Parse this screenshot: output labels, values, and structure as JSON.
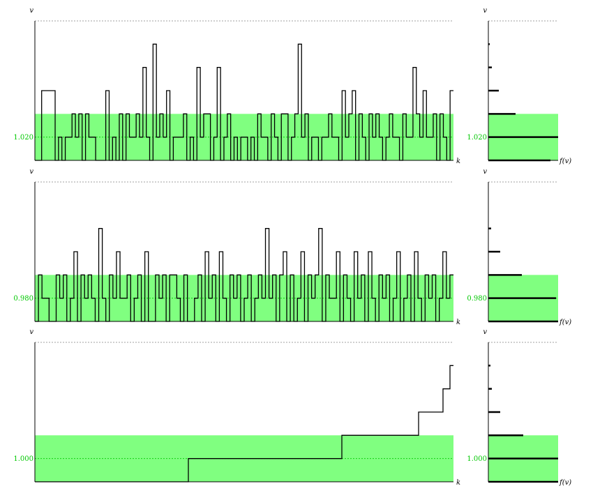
{
  "chart_data": [
    {
      "type": "line",
      "ylabel": "v",
      "xlabel": "k",
      "band": [
        1.01,
        1.03
      ],
      "ylim": [
        1.01,
        1.07
      ],
      "yticks": [
        {
          "value": 1.02,
          "label": "1.020"
        }
      ],
      "series": [
        {
          "y": [
            1.01,
            1.01,
            1.04,
            1.04,
            1.04,
            1.04,
            1.01,
            1.02,
            1.01,
            1.02,
            1.02,
            1.03,
            1.02,
            1.03,
            1.01,
            1.03,
            1.02,
            1.02,
            1.01,
            1.01,
            1.01,
            1.04,
            1.01,
            1.02,
            1.01,
            1.03,
            1.01,
            1.03,
            1.02,
            1.02,
            1.03,
            1.02,
            1.05,
            1.02,
            1.01,
            1.06,
            1.02,
            1.03,
            1.02,
            1.04,
            1.01,
            1.02,
            1.02,
            1.02,
            1.03,
            1.01,
            1.02,
            1.01,
            1.05,
            1.02,
            1.03,
            1.03,
            1.01,
            1.02,
            1.05,
            1.01,
            1.02,
            1.03,
            1.01,
            1.02,
            1.01,
            1.02,
            1.02,
            1.01,
            1.02,
            1.01,
            1.03,
            1.02,
            1.02,
            1.01,
            1.03,
            1.02,
            1.01,
            1.03,
            1.03,
            1.01,
            1.02,
            1.03,
            1.06,
            1.02,
            1.03,
            1.01,
            1.02,
            1.02,
            1.01,
            1.02,
            1.02,
            1.03,
            1.02,
            1.02,
            1.01,
            1.04,
            1.02,
            1.03,
            1.04,
            1.01,
            1.03,
            1.02,
            1.01,
            1.03,
            1.02,
            1.03,
            1.02,
            1.01,
            1.02,
            1.03,
            1.02,
            1.02,
            1.01,
            1.03,
            1.02,
            1.02,
            1.05,
            1.03,
            1.02,
            1.04,
            1.02,
            1.02,
            1.03,
            1.01,
            1.03,
            1.02,
            1.01,
            1.04
          ]
        }
      ]
    },
    {
      "type": "line",
      "ylabel": "v",
      "xlabel": "k",
      "band": [
        0.97,
        0.99
      ],
      "ylim": [
        0.97,
        1.03
      ],
      "yticks": [
        {
          "value": 0.98,
          "label": "0.980"
        }
      ],
      "series": [
        {
          "y": [
            0.97,
            0.99,
            0.98,
            0.98,
            0.97,
            0.97,
            0.99,
            0.98,
            0.99,
            0.97,
            0.98,
            1.0,
            0.97,
            0.99,
            0.98,
            0.99,
            0.98,
            0.97,
            1.01,
            0.98,
            0.97,
            0.99,
            0.98,
            1.0,
            0.98,
            0.98,
            0.99,
            0.97,
            0.98,
            0.99,
            0.97,
            1.0,
            0.97,
            0.97,
            0.99,
            0.98,
            0.99,
            0.97,
            0.99,
            0.99,
            0.98,
            0.97,
            0.99,
            0.97,
            0.97,
            0.98,
            0.99,
            0.97,
            1.0,
            0.98,
            0.99,
            0.97,
            1.0,
            0.98,
            0.97,
            0.99,
            0.98,
            0.99,
            0.97,
            0.98,
            0.99,
            0.97,
            0.98,
            0.99,
            0.98,
            1.01,
            0.98,
            0.99,
            0.97,
            0.99,
            1.0,
            0.97,
            0.99,
            0.97,
            0.98,
            1.0,
            0.97,
            0.99,
            0.98,
            0.99,
            1.01,
            0.97,
            0.99,
            0.98,
            0.98,
            1.0,
            0.97,
            0.99,
            0.98,
            0.97,
            1.0,
            0.98,
            0.99,
            0.97,
            1.0,
            0.98,
            0.97,
            0.99,
            0.98,
            0.99,
            0.97,
            0.98,
            1.0,
            0.97,
            0.98,
            0.99,
            0.97,
            1.0,
            0.98,
            0.97,
            0.99,
            0.98,
            0.99,
            0.97,
            0.98,
            1.0,
            0.98,
            0.99
          ]
        }
      ]
    },
    {
      "type": "line",
      "ylabel": "v",
      "xlabel": "k",
      "band": [
        0.99,
        1.01
      ],
      "ylim": [
        0.99,
        1.05
      ],
      "yticks": [
        {
          "value": 1.0,
          "label": "1.000"
        }
      ],
      "series": [
        {
          "y": [
            0.99,
            0.99,
            0.99,
            0.99,
            0.99,
            0.99,
            0.99,
            0.99,
            0.99,
            0.99,
            0.99,
            0.99,
            0.99,
            0.99,
            0.99,
            0.99,
            0.99,
            0.99,
            0.99,
            0.99,
            0.99,
            0.99,
            0.99,
            0.99,
            0.99,
            0.99,
            0.99,
            0.99,
            0.99,
            0.99,
            0.99,
            0.99,
            0.99,
            0.99,
            0.99,
            0.99,
            0.99,
            0.99,
            0.99,
            0.99,
            0.99,
            0.99,
            0.99,
            0.99,
            1.0,
            1.0,
            1.0,
            1.0,
            1.0,
            1.0,
            1.0,
            1.0,
            1.0,
            1.0,
            1.0,
            1.0,
            1.0,
            1.0,
            1.0,
            1.0,
            1.0,
            1.0,
            1.0,
            1.0,
            1.0,
            1.0,
            1.0,
            1.0,
            1.0,
            1.0,
            1.0,
            1.0,
            1.0,
            1.0,
            1.0,
            1.0,
            1.0,
            1.0,
            1.0,
            1.0,
            1.0,
            1.0,
            1.0,
            1.0,
            1.0,
            1.0,
            1.0,
            1.0,
            1.01,
            1.01,
            1.01,
            1.01,
            1.01,
            1.01,
            1.01,
            1.01,
            1.01,
            1.01,
            1.01,
            1.01,
            1.01,
            1.01,
            1.01,
            1.01,
            1.01,
            1.01,
            1.01,
            1.01,
            1.01,
            1.01,
            1.02,
            1.02,
            1.02,
            1.02,
            1.02,
            1.02,
            1.02,
            1.03,
            1.03,
            1.04
          ]
        }
      ]
    }
  ],
  "histograms": [
    {
      "ylabel": "v",
      "xlabel": "f(v)",
      "yticks": [
        {
          "value": 1.02,
          "label": "1.020"
        }
      ],
      "bins": [
        {
          "v": 1.01,
          "f": 0.89
        },
        {
          "v": 1.02,
          "f": 1.0
        },
        {
          "v": 1.03,
          "f": 0.39
        },
        {
          "v": 1.04,
          "f": 0.15
        },
        {
          "v": 1.05,
          "f": 0.05
        },
        {
          "v": 1.06,
          "f": 0.02
        }
      ]
    },
    {
      "ylabel": "v",
      "xlabel": "f(v)",
      "yticks": [
        {
          "value": 0.98,
          "label": "0.980"
        }
      ],
      "bins": [
        {
          "v": 0.97,
          "f": 1.0
        },
        {
          "v": 0.98,
          "f": 0.97
        },
        {
          "v": 0.99,
          "f": 0.48
        },
        {
          "v": 1.0,
          "f": 0.17
        },
        {
          "v": 1.01,
          "f": 0.04
        }
      ]
    },
    {
      "ylabel": "v",
      "xlabel": "f(v)",
      "yticks": [
        {
          "value": 1.0,
          "label": "1.000"
        }
      ],
      "bins": [
        {
          "v": 0.99,
          "f": 1.0
        },
        {
          "v": 1.0,
          "f": 1.0
        },
        {
          "v": 1.01,
          "f": 0.5
        },
        {
          "v": 1.02,
          "f": 0.17
        },
        {
          "v": 1.03,
          "f": 0.05
        },
        {
          "v": 1.04,
          "f": 0.03
        }
      ]
    }
  ],
  "colors": {
    "band": "#80ff80",
    "tick": "#00c800",
    "line": "#000000",
    "grid": "#808080"
  }
}
